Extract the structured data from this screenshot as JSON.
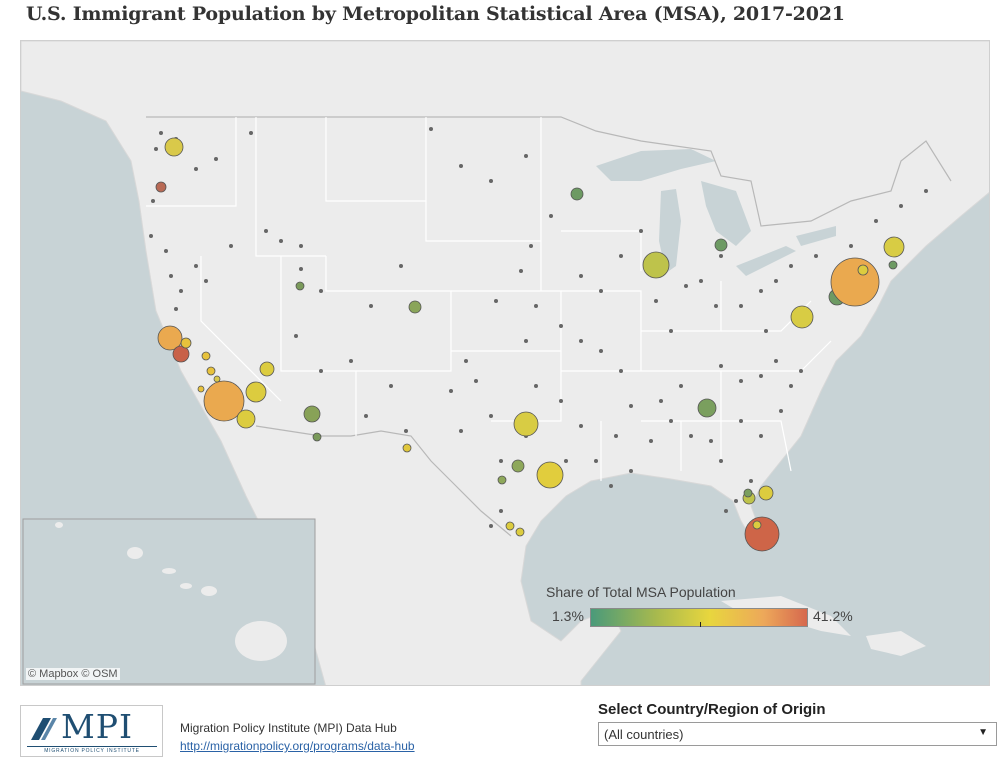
{
  "title": "U.S. Immigrant Population by Metropolitan Statistical Area (MSA), 2017-2021",
  "map": {
    "attribution": "© Mapbox  © OSM",
    "basemap_colors": {
      "water": "#c8d3d6",
      "land": "#ececec",
      "border": "#ffffff",
      "lakes": "#c8d3d6"
    }
  },
  "legend": {
    "title": "Share of Total MSA Population",
    "min_label": "1.3%",
    "max_label": "41.2%",
    "colors": [
      "#4a9a7a",
      "#a7b94e",
      "#e8d63e",
      "#eda85a",
      "#d6684e"
    ]
  },
  "footer": {
    "logo_text": "MPI",
    "logo_subtext": "MIGRATION POLICY INSTITUTE",
    "org_name": "Migration Policy Institute (MPI) Data Hub",
    "link_text": "http://migrationpolicy.org/programs/data-hub"
  },
  "filter": {
    "label": "Select Country/Region of Origin",
    "selected": "(All countries)"
  }
}
